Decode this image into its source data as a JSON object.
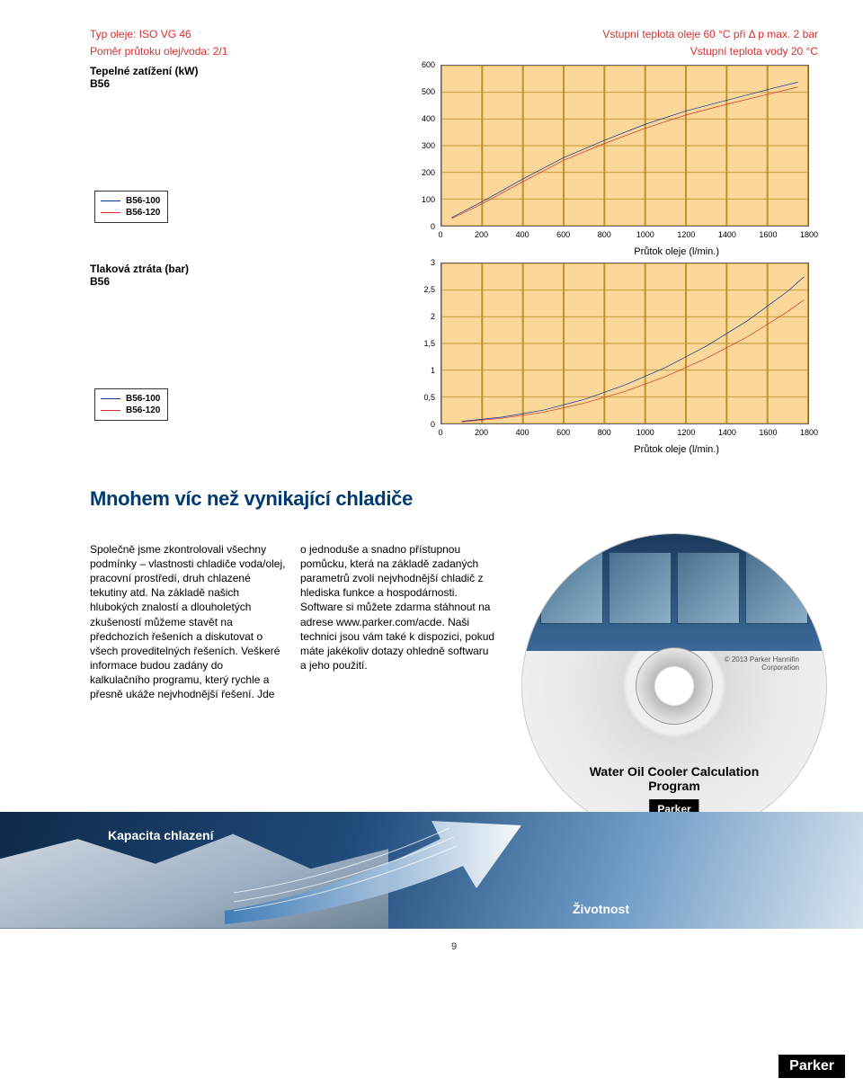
{
  "hdr": {
    "left1": "Typ oleje: ISO VG 46",
    "left2": "Poměr průtoku olej/voda: 2/1",
    "right1": "Vstupní teplota oleje 60 °C při Δ p max. 2 bar",
    "right2": "Vstupní teplota vody 20 °C"
  },
  "chart1": {
    "type": "line",
    "side_title": "Tepelné zatížení (kW)\nB56",
    "xlim": [
      0,
      1800
    ],
    "xtick_step": 200,
    "ylim": [
      0,
      600
    ],
    "ytick_step": 100,
    "x_ticks": [
      0,
      200,
      400,
      600,
      800,
      1000,
      1200,
      1400,
      1600,
      1800
    ],
    "y_ticks": [
      0,
      100,
      200,
      300,
      400,
      500,
      600
    ],
    "background_color": "#fbd89a",
    "grid_color": "#c0922a",
    "series": [
      {
        "name": "B56-100",
        "color": "#0033a0",
        "points": [
          [
            50,
            30
          ],
          [
            200,
            90
          ],
          [
            400,
            175
          ],
          [
            600,
            255
          ],
          [
            800,
            320
          ],
          [
            1000,
            380
          ],
          [
            1200,
            430
          ],
          [
            1400,
            470
          ],
          [
            1600,
            510
          ],
          [
            1750,
            538
          ]
        ]
      },
      {
        "name": "B56-120",
        "color": "#d32f2f",
        "points": [
          [
            50,
            26
          ],
          [
            200,
            82
          ],
          [
            400,
            165
          ],
          [
            600,
            245
          ],
          [
            800,
            308
          ],
          [
            1000,
            365
          ],
          [
            1200,
            415
          ],
          [
            1400,
            455
          ],
          [
            1600,
            492
          ],
          [
            1750,
            520
          ]
        ]
      }
    ],
    "axis_label": "Průtok oleje (l/min.)",
    "legend": {
      "title": "",
      "items": [
        "B56-100",
        "B56-120"
      ]
    }
  },
  "chart2": {
    "type": "line",
    "side_title": "Tlaková ztráta (bar)\nB56",
    "xlim": [
      0,
      1800
    ],
    "xtick_step": 200,
    "ylim": [
      0,
      3
    ],
    "ytick_step": 0.5,
    "x_ticks": [
      0,
      200,
      400,
      600,
      800,
      1000,
      1200,
      1400,
      1600,
      1800
    ],
    "y_ticks": [
      "0",
      "0,5",
      "1",
      "1,5",
      "2",
      "2,5",
      "3"
    ],
    "background_color": "#fbd89a",
    "grid_color": "#c0922a",
    "series": [
      {
        "name": "B56-100",
        "color": "#0033a0",
        "points": [
          [
            100,
            0.04
          ],
          [
            300,
            0.12
          ],
          [
            500,
            0.25
          ],
          [
            700,
            0.45
          ],
          [
            900,
            0.72
          ],
          [
            1100,
            1.05
          ],
          [
            1300,
            1.45
          ],
          [
            1500,
            1.92
          ],
          [
            1700,
            2.48
          ],
          [
            1780,
            2.75
          ]
        ]
      },
      {
        "name": "B56-120",
        "color": "#d32f2f",
        "points": [
          [
            100,
            0.03
          ],
          [
            300,
            0.1
          ],
          [
            500,
            0.21
          ],
          [
            700,
            0.38
          ],
          [
            900,
            0.6
          ],
          [
            1100,
            0.88
          ],
          [
            1300,
            1.22
          ],
          [
            1500,
            1.62
          ],
          [
            1700,
            2.1
          ],
          [
            1780,
            2.32
          ]
        ]
      }
    ],
    "axis_label": "Průtok oleje (l/min.)",
    "legend": {
      "items": [
        "B56-100",
        "B56-120"
      ]
    }
  },
  "article": {
    "title": "Mnohem víc než vynikající chladiče",
    "col1": "Společně jsme zkontrolovali všechny podmínky – vlastnosti chladiče voda/olej, pracovní prostředí, druh chlazené tekutiny atd. Na základě našich hlubokých znalostí a dlouholetých zkušeností můžeme stavět na předchozích řešeních a diskutovat o všech proveditelných řešeních. Veškeré informace budou zadány do kalkulačního programu, který rychle a přesně ukáže nejvhodnější řešení. Jde",
    "col2": "o jednoduše a snadno přístupnou pomůcku, která na základě zadaných parametrů zvolí nejvhodnější chladič z hlediska funkce a hospodárnosti. Software si můžete zdarma stáhnout na adrese www.parker.com/acde. Naši technici jsou vám také k dispozici, pokud máte jakékoliv dotazy ohledně softwaru a jeho použití."
  },
  "cd": {
    "copyright": "© 2013 Parker Hannifin\nCorporation",
    "title": "Water Oil Cooler Calculation\nProgram",
    "logo": "Parker"
  },
  "banner": {
    "left_label": "Kapacita chlazení",
    "right_label": "Životnost"
  },
  "footer": {
    "page": "9",
    "logo": "Parker"
  },
  "colors": {
    "red": "#d32f2f",
    "blue": "#0033a0",
    "title_blue": "#003a6f",
    "chart_bg": "#fbd89a"
  }
}
